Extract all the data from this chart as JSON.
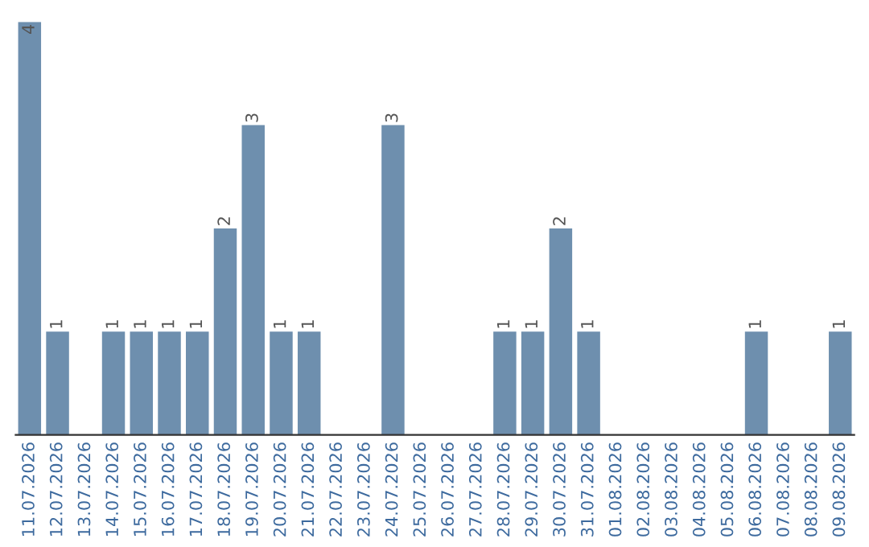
{
  "chart_data": {
    "type": "bar",
    "categories": [
      "11.07.2026",
      "12.07.2026",
      "13.07.2026",
      "14.07.2026",
      "15.07.2026",
      "16.07.2026",
      "17.07.2026",
      "18.07.2026",
      "19.07.2026",
      "20.07.2026",
      "21.07.2026",
      "22.07.2026",
      "23.07.2026",
      "24.07.2026",
      "25.07.2026",
      "26.07.2026",
      "27.07.2026",
      "28.07.2026",
      "29.07.2026",
      "30.07.2026",
      "31.07.2026",
      "01.08.2026",
      "02.08.2026",
      "03.08.2026",
      "04.08.2026",
      "05.08.2026",
      "06.08.2026",
      "07.08.2026",
      "08.08.2026",
      "09.08.2026"
    ],
    "values": [
      4,
      1,
      0,
      1,
      1,
      1,
      1,
      2,
      3,
      1,
      1,
      0,
      0,
      3,
      0,
      0,
      0,
      1,
      1,
      2,
      1,
      0,
      0,
      0,
      0,
      0,
      1,
      0,
      0,
      1
    ],
    "value_labels": [
      "4",
      "1",
      null,
      "1",
      "1",
      "1",
      "1",
      "2",
      "3",
      "1",
      "1",
      null,
      null,
      "3",
      null,
      null,
      null,
      "1",
      "1",
      "2",
      "1",
      null,
      null,
      null,
      null,
      null,
      "1",
      null,
      null,
      "1"
    ],
    "color": "#6e8fae",
    "grid": false
  }
}
